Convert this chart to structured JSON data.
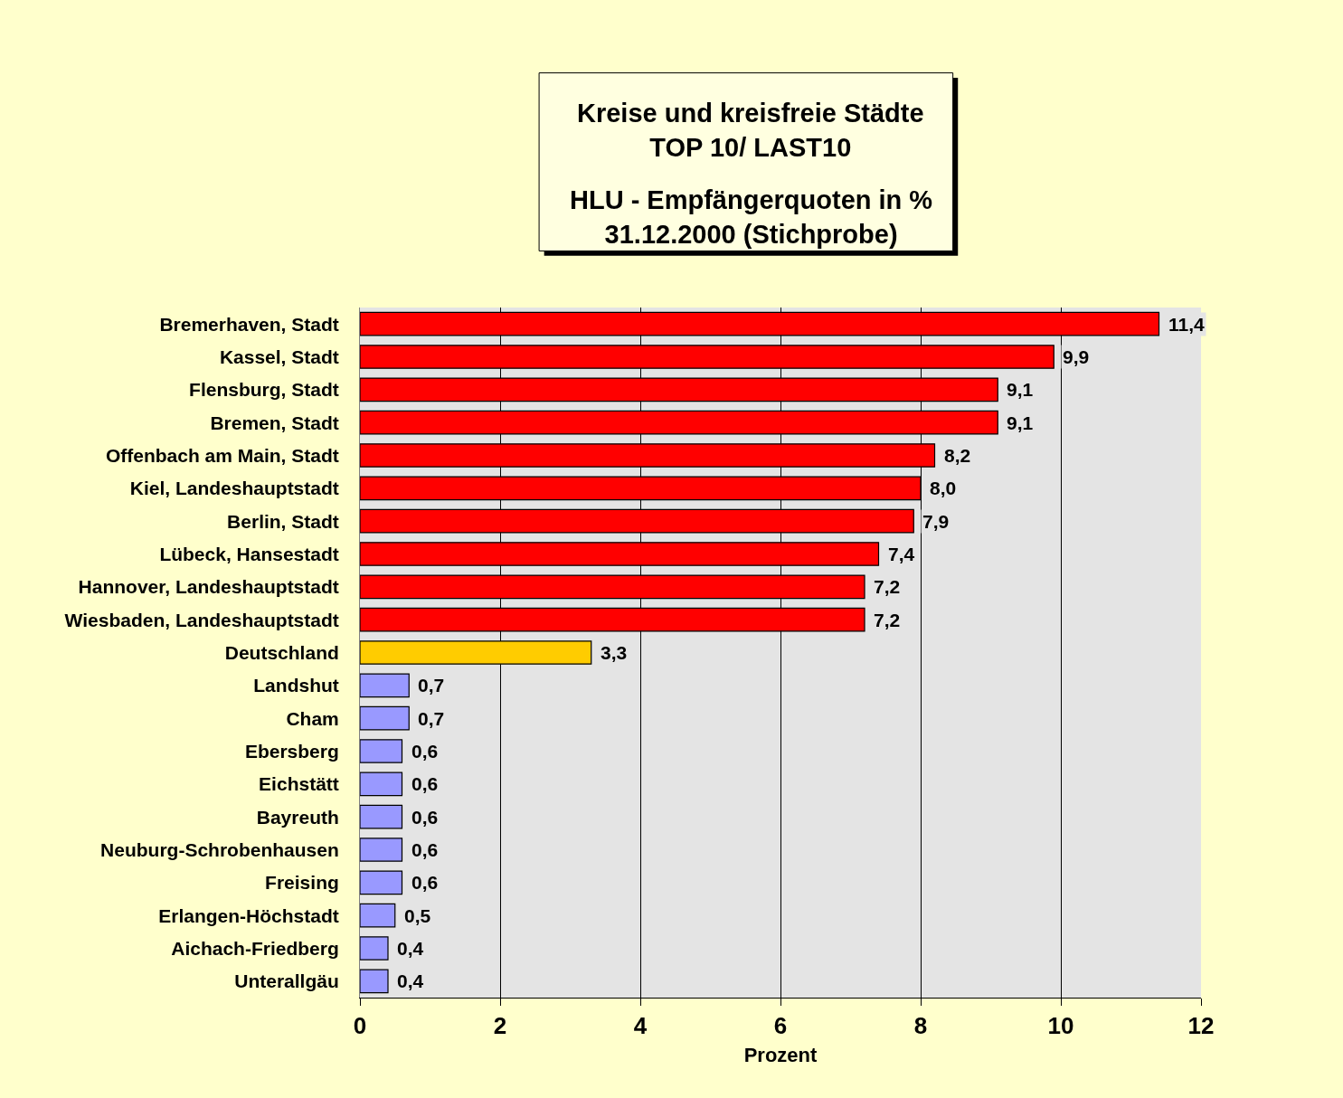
{
  "chart_data": {
    "type": "bar",
    "orientation": "horizontal",
    "title": "Kreise und kreisfreie Städte\nTOP 10/ LAST10",
    "subtitle": "HLU - Empfängerquoten in %\n31.12.2000 (Stichprobe)",
    "xlabel": "Prozent",
    "categories": [
      "Bremerhaven, Stadt",
      "Kassel, Stadt",
      "Flensburg, Stadt",
      "Bremen, Stadt",
      "Offenbach am Main, Stadt",
      "Kiel, Landeshauptstadt",
      "Berlin, Stadt",
      "Lübeck, Hansestadt",
      "Hannover, Landeshauptstadt",
      "Wiesbaden, Landeshauptstadt",
      "Deutschland",
      "Landshut",
      "Cham",
      "Ebersberg",
      "Eichstätt",
      "Bayreuth",
      "Neuburg-Schrobenhausen",
      "Freising",
      "Erlangen-Höchstadt",
      "Aichach-Friedberg",
      "Unterallgäu"
    ],
    "values": [
      11.4,
      9.9,
      9.1,
      9.1,
      8.2,
      8.0,
      7.9,
      7.4,
      7.2,
      7.2,
      3.3,
      0.7,
      0.7,
      0.6,
      0.6,
      0.6,
      0.6,
      0.6,
      0.5,
      0.4,
      0.4
    ],
    "value_labels": [
      "11,4",
      "9,9",
      "9,1",
      "9,1",
      "8,2",
      "8,0",
      "7,9",
      "7,4",
      "7,2",
      "7,2",
      "3,3",
      "0,7",
      "0,7",
      "0,6",
      "0,6",
      "0,6",
      "0,6",
      "0,6",
      "0,5",
      "0,4",
      "0,4"
    ],
    "colors": [
      "#ff0000",
      "#ff0000",
      "#ff0000",
      "#ff0000",
      "#ff0000",
      "#ff0000",
      "#ff0000",
      "#ff0000",
      "#ff0000",
      "#ff0000",
      "#ffcc00",
      "#9999ff",
      "#9999ff",
      "#9999ff",
      "#9999ff",
      "#9999ff",
      "#9999ff",
      "#9999ff",
      "#9999ff",
      "#9999ff",
      "#9999ff"
    ],
    "xlim": [
      0,
      12
    ],
    "xticks": [
      0,
      2,
      4,
      6,
      8,
      10,
      12
    ],
    "grid": "x"
  }
}
